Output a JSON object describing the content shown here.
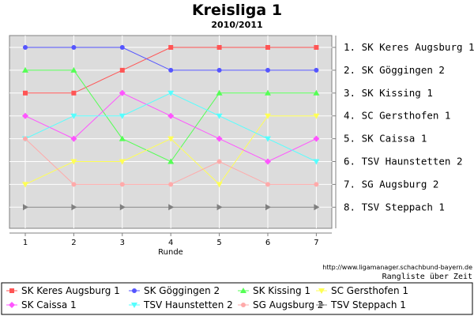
{
  "chart_data": {
    "type": "line",
    "title": "Kreisliga 1",
    "subtitle": "2010/2011",
    "xlabel": "Runde",
    "ylabel": "",
    "x": [
      1,
      2,
      3,
      4,
      5,
      6,
      7
    ],
    "ylim": [
      1,
      8
    ],
    "y_inverted": true,
    "grid": true,
    "background": "#dcdcdc",
    "legend_position": "bottom",
    "rank_labels": [
      "1. SK Keres Augsburg 1",
      "2. SK Göggingen 2",
      "3. SK Kissing 1",
      "4. SC Gersthofen 1",
      "5. SK Caissa 1",
      "6. TSV Haunstetten 2",
      "7. SG Augsburg 2",
      "8. TSV Steppach 1"
    ],
    "series": [
      {
        "name": "SK Keres Augsburg 1",
        "color": "#ff5555",
        "marker": "square",
        "values": [
          3,
          3,
          2,
          1,
          1,
          1,
          1
        ]
      },
      {
        "name": "SK Göggingen 2",
        "color": "#5555ff",
        "marker": "circle",
        "values": [
          1,
          1,
          1,
          2,
          2,
          2,
          2
        ]
      },
      {
        "name": "SK Kissing 1",
        "color": "#55ff55",
        "marker": "triangle-up",
        "values": [
          2,
          2,
          5,
          6,
          3,
          3,
          3
        ]
      },
      {
        "name": "SC Gersthofen 1",
        "color": "#ffff55",
        "marker": "triangle-down",
        "values": [
          7,
          6,
          6,
          5,
          7,
          4,
          4
        ]
      },
      {
        "name": "SK Caissa 1",
        "color": "#ff55ff",
        "marker": "diamond",
        "values": [
          4,
          5,
          3,
          4,
          5,
          6,
          5
        ]
      },
      {
        "name": "TSV Haunstetten 2",
        "color": "#55ffff",
        "marker": "triangle-down",
        "values": [
          5,
          4,
          4,
          3,
          4,
          5,
          6
        ]
      },
      {
        "name": "SG Augsburg 2",
        "color": "#ffaaaa",
        "marker": "circle",
        "values": [
          5,
          7,
          7,
          7,
          6,
          7,
          7
        ]
      },
      {
        "name": "TSV Steppach 1",
        "color": "#808080",
        "marker": "triangle-right",
        "values": [
          8,
          8,
          8,
          8,
          8,
          8,
          8
        ]
      }
    ]
  },
  "footer": {
    "credit": "http://www.ligamanager.schachbund-bayern.de",
    "caption": "Rangliste über Zeit"
  }
}
